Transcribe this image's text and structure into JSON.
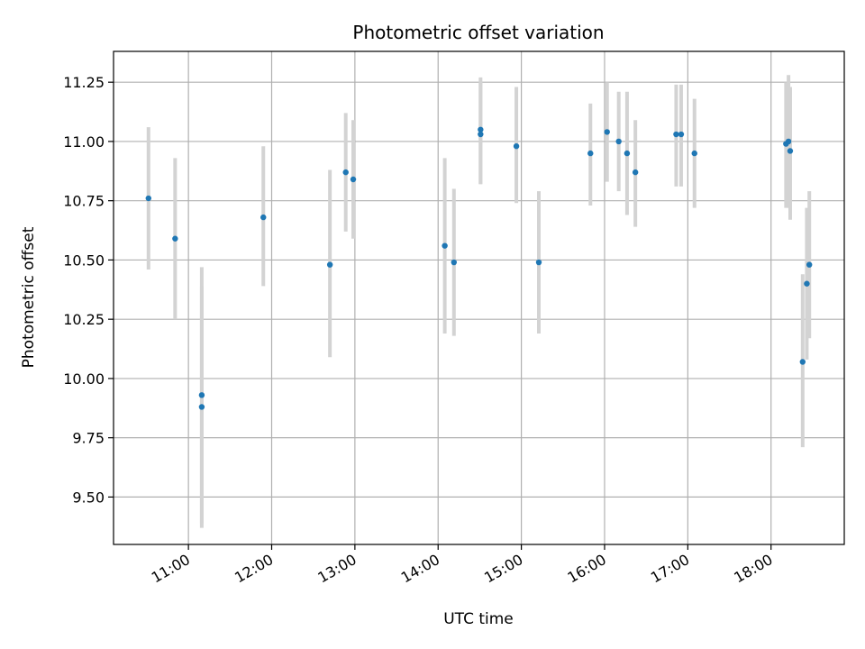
{
  "chart_data": {
    "type": "scatter",
    "title": "Photometric offset variation",
    "xlabel": "UTC time",
    "ylabel": "Photometric offset",
    "x_tick_labels": [
      "11:00",
      "12:00",
      "13:00",
      "14:00",
      "15:00",
      "16:00",
      "17:00",
      "18:00"
    ],
    "x_tick_hours": [
      11,
      12,
      13,
      14,
      15,
      16,
      17,
      18
    ],
    "y_ticks": [
      9.5,
      9.75,
      10.0,
      10.25,
      10.5,
      10.75,
      11.0,
      11.25
    ],
    "y_tick_labels": [
      "9.50",
      "9.75",
      "10.00",
      "10.25",
      "10.50",
      "10.75",
      "11.00",
      "11.25"
    ],
    "xlim": [
      10.1,
      18.88
    ],
    "ylim": [
      9.3,
      11.38
    ],
    "grid": true,
    "point_color": "#1f77b4",
    "errorbar_color": "#d3d3d3",
    "points": [
      {
        "x": 10.52,
        "y": 10.76,
        "yerr_low": 10.46,
        "yerr_high": 11.06
      },
      {
        "x": 10.84,
        "y": 10.59,
        "yerr_low": 10.25,
        "yerr_high": 10.93
      },
      {
        "x": 11.16,
        "y": 9.93,
        "yerr_low": 9.39,
        "yerr_high": 10.47
      },
      {
        "x": 11.16,
        "y": 9.88,
        "yerr_low": 9.37,
        "yerr_high": 10.39
      },
      {
        "x": 11.9,
        "y": 10.68,
        "yerr_low": 10.39,
        "yerr_high": 10.98
      },
      {
        "x": 12.7,
        "y": 10.48,
        "yerr_low": 10.09,
        "yerr_high": 10.88
      },
      {
        "x": 12.89,
        "y": 10.87,
        "yerr_low": 10.62,
        "yerr_high": 11.12
      },
      {
        "x": 12.98,
        "y": 10.84,
        "yerr_low": 10.59,
        "yerr_high": 11.09
      },
      {
        "x": 14.08,
        "y": 10.56,
        "yerr_low": 10.19,
        "yerr_high": 10.93
      },
      {
        "x": 14.19,
        "y": 10.49,
        "yerr_low": 10.18,
        "yerr_high": 10.8
      },
      {
        "x": 14.51,
        "y": 11.05,
        "yerr_low": 10.82,
        "yerr_high": 11.27
      },
      {
        "x": 14.51,
        "y": 11.03,
        "yerr_low": 10.82,
        "yerr_high": 11.25
      },
      {
        "x": 14.94,
        "y": 10.98,
        "yerr_low": 10.74,
        "yerr_high": 11.23
      },
      {
        "x": 15.21,
        "y": 10.49,
        "yerr_low": 10.19,
        "yerr_high": 10.79
      },
      {
        "x": 15.83,
        "y": 10.95,
        "yerr_low": 10.73,
        "yerr_high": 11.16
      },
      {
        "x": 16.03,
        "y": 11.04,
        "yerr_low": 10.83,
        "yerr_high": 11.25
      },
      {
        "x": 16.17,
        "y": 11.0,
        "yerr_low": 10.79,
        "yerr_high": 11.21
      },
      {
        "x": 16.27,
        "y": 10.95,
        "yerr_low": 10.69,
        "yerr_high": 11.21
      },
      {
        "x": 16.37,
        "y": 10.87,
        "yerr_low": 10.64,
        "yerr_high": 11.09
      },
      {
        "x": 16.86,
        "y": 11.03,
        "yerr_low": 10.81,
        "yerr_high": 11.24
      },
      {
        "x": 16.92,
        "y": 11.03,
        "yerr_low": 10.81,
        "yerr_high": 11.24
      },
      {
        "x": 17.08,
        "y": 10.95,
        "yerr_low": 10.72,
        "yerr_high": 11.18
      },
      {
        "x": 18.18,
        "y": 10.99,
        "yerr_low": 10.72,
        "yerr_high": 11.25
      },
      {
        "x": 18.21,
        "y": 11.0,
        "yerr_low": 10.72,
        "yerr_high": 11.28
      },
      {
        "x": 18.23,
        "y": 10.96,
        "yerr_low": 10.67,
        "yerr_high": 11.23
      },
      {
        "x": 18.38,
        "y": 10.07,
        "yerr_low": 9.71,
        "yerr_high": 10.44
      },
      {
        "x": 18.43,
        "y": 10.4,
        "yerr_low": 10.08,
        "yerr_high": 10.72
      },
      {
        "x": 18.46,
        "y": 10.48,
        "yerr_low": 10.17,
        "yerr_high": 10.79
      }
    ]
  }
}
